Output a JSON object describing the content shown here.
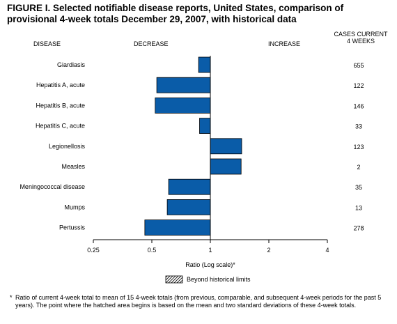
{
  "title": "FIGURE I. Selected notifiable disease reports, United States, comparison of provisional 4-week totals December 29, 2007, with historical data",
  "headers": {
    "disease": "DISEASE",
    "decrease": "DECREASE",
    "increase": "INCREASE",
    "cases_line1": "CASES CURRENT",
    "cases_line2": "4 WEEKS"
  },
  "legend": {
    "label": "Beyond historical limits"
  },
  "footnote": {
    "marker": "*",
    "text": "Ratio of current 4-week total to mean of 15 4-week totals (from previous, comparable, and subsequent 4-week periods for the past 5 years). The point where the hatched area begins is based on the mean and two standard deviations of these 4-week totals."
  },
  "colors": {
    "bar": "#0a5ca8",
    "bar_stroke": "#000000"
  },
  "chart_data": {
    "type": "bar",
    "orientation": "horizontal",
    "scale": "log2",
    "categories": [
      "Giardiasis",
      "Hepatitis A, acute",
      "Hepatitis B, acute",
      "Hepatitis C, acute",
      "Legionellosis",
      "Measles",
      "Meningococcal disease",
      "Mumps",
      "Pertussis"
    ],
    "values": [
      0.87,
      0.53,
      0.52,
      0.88,
      1.45,
      1.44,
      0.61,
      0.6,
      0.46
    ],
    "cases": [
      "655",
      "122",
      "146",
      "33",
      "123",
      "2",
      "35",
      "13",
      "278"
    ],
    "xlim": [
      0.25,
      4
    ],
    "xticks": [
      0.25,
      0.5,
      1,
      2,
      4
    ],
    "xtick_labels": [
      "0.25",
      "0.5",
      "1",
      "2",
      "4"
    ],
    "xlabel": "Ratio (Log scale)*",
    "ylabel": "",
    "grid": false
  }
}
